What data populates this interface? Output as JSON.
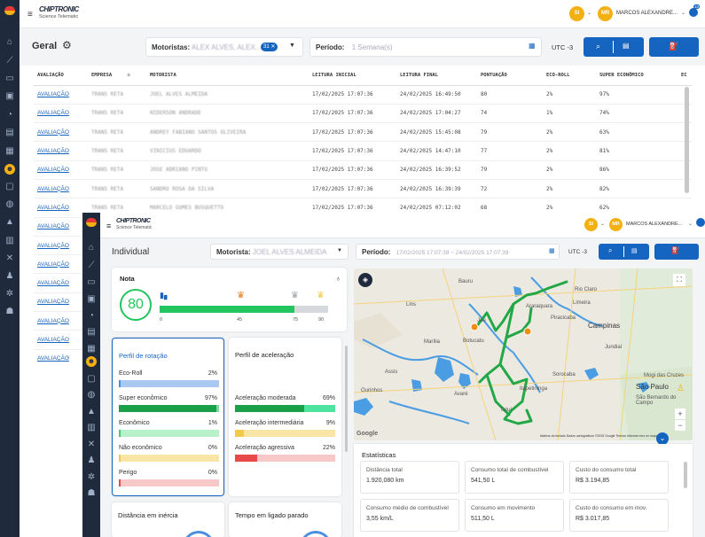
{
  "back": {
    "brand": "CHIPTRONIC",
    "brand_sub": "Science Telematic",
    "avatar1": "SI",
    "avatar2": "MR",
    "user_name": "MARCOS ALEXANDRE...",
    "notif_count": "10",
    "page_title": "Geral",
    "motoristas_label": "Motoristas:",
    "motoristas_value": "ALEX ALVES, ALEX...",
    "motoristas_count": "31",
    "periodo_label": "Período:",
    "periodo_value": "1 Semana(s)",
    "timezone": "UTC -3",
    "columns": [
      "AVALIAÇÃO",
      "EMPRESA",
      "MOTORISTA",
      "LEITURA INICIAL",
      "LEITURA FINAL",
      "PONTUAÇÃO",
      "ECO-ROLL",
      "SUPER ECONÔMICO",
      "EC"
    ],
    "rows": [
      {
        "avaliacao": "AVALIAÇÃO",
        "empresa": "TRANS RETA",
        "motorista": "JOEL ALVES ALMEIDA",
        "inicial": "17/02/2025 17:07:36",
        "final": "24/02/2025 16:49:50",
        "pontuacao": "80",
        "eco": "2%",
        "super": "97%"
      },
      {
        "avaliacao": "AVALIAÇÃO",
        "empresa": "TRANS RETA",
        "motorista": "NIDERSON ANDRADE",
        "inicial": "17/02/2025 17:07:36",
        "final": "24/02/2025 17:04:27",
        "pontuacao": "74",
        "eco": "1%",
        "super": "74%"
      },
      {
        "avaliacao": "AVALIAÇÃO",
        "empresa": "TRANS RETA",
        "motorista": "ANDREY FABIANO SANTOS OLIVEIRA",
        "inicial": "17/02/2025 17:07:36",
        "final": "24/02/2025 15:45:08",
        "pontuacao": "79",
        "eco": "2%",
        "super": "63%"
      },
      {
        "avaliacao": "AVALIAÇÃO",
        "empresa": "TRANS RETA",
        "motorista": "VINICIUS EDUARDO",
        "inicial": "17/02/2025 17:07:36",
        "final": "24/02/2025 14:47:10",
        "pontuacao": "77",
        "eco": "2%",
        "super": "81%"
      },
      {
        "avaliacao": "AVALIAÇÃO",
        "empresa": "TRANS RETA",
        "motorista": "JOSE ADRIANO PINTO",
        "inicial": "17/02/2025 17:07:36",
        "final": "24/02/2025 16:39:52",
        "pontuacao": "79",
        "eco": "2%",
        "super": "86%"
      },
      {
        "avaliacao": "AVALIAÇÃO",
        "empresa": "TRANS RETA",
        "motorista": "SANDRO ROSA DA SILVA",
        "inicial": "17/02/2025 17:07:36",
        "final": "24/02/2025 16:39:39",
        "pontuacao": "72",
        "eco": "2%",
        "super": "82%"
      },
      {
        "avaliacao": "AVALIAÇÃO",
        "empresa": "TRANS RETA",
        "motorista": "MARCELO GOMES BUSQUETTO",
        "inicial": "17/02/2025 17:07:36",
        "final": "24/02/2025 07:12:02",
        "pontuacao": "68",
        "eco": "2%",
        "super": "62%"
      },
      {
        "avaliacao": "AVALIAÇÃO"
      },
      {
        "avaliacao": "AVALIAÇÃO"
      },
      {
        "avaliacao": "AVALIAÇÃO"
      },
      {
        "avaliacao": "AVALIAÇÃO"
      },
      {
        "avaliacao": "AVALIAÇÃO"
      },
      {
        "avaliacao": "AVALIAÇÃO"
      },
      {
        "avaliacao": "AVALIAÇÃO"
      },
      {
        "avaliacao": "AVALIAÇÃO"
      }
    ]
  },
  "front": {
    "brand": "CHIPTRONIC",
    "brand_sub": "Science Telematic",
    "avatar1": "SI",
    "avatar2": "MR",
    "user_name": "MARCOS ALEXANDRE...",
    "page_title": "Individual",
    "motorista_label": "Motorista:",
    "motorista_value": "JOEL ALVES ALMEIDA",
    "periodo_label": "Período:",
    "periodo_value": "17/02/2025 17:07:39 ~ 24/02/2025 17:07:39",
    "timezone": "UTC -3",
    "nota": {
      "title": "Nota",
      "score": "80",
      "progress": 0.8,
      "ticks": [
        "0",
        "45",
        "75",
        "90"
      ]
    },
    "perfil_rotacao": {
      "title": "Perfil de rotação",
      "items": [
        {
          "label": "Eco-Roll",
          "value": "2%",
          "fraction": 0.02,
          "fg": "#4a8fe0",
          "bg": "#a9c9f2"
        },
        {
          "label": "Super econômico",
          "value": "97%",
          "fraction": 0.97,
          "fg": "#1aa049",
          "bg": "#7ddc9c"
        },
        {
          "label": "Econômico",
          "value": "1%",
          "fraction": 0.01,
          "fg": "#3ccf74",
          "bg": "#b6f1c9"
        },
        {
          "label": "Não econômico",
          "value": "0%",
          "fraction": 0.0,
          "fg": "#f2c94c",
          "bg": "#f9e6a6"
        },
        {
          "label": "Perigo",
          "value": "0%",
          "fraction": 0.0,
          "fg": "#e84a4a",
          "bg": "#f8c7c7"
        }
      ]
    },
    "perfil_aceleracao": {
      "title": "Perfil de aceleração",
      "items": [
        {
          "label": "Aceleração moderada",
          "value": "69%",
          "fraction": 0.69,
          "fg": "#1aa049",
          "bg": "#4fe3a0"
        },
        {
          "label": "Aceleração intermediária",
          "value": "9%",
          "fraction": 0.09,
          "fg": "#f2c94c",
          "bg": "#f9e6a6"
        },
        {
          "label": "Aceleração agressiva",
          "value": "22%",
          "fraction": 0.22,
          "fg": "#e84a4a",
          "bg": "#f8c7c7"
        }
      ]
    },
    "distancia_inercia": "Distância em inércia",
    "tempo_ligado": "Tempo em ligado parado",
    "map": {
      "cities": [
        "Bauru",
        "Rio Claro",
        "Limeira",
        "Piracicaba",
        "Campinas",
        "Sorocaba",
        "São Paulo",
        "Mogi das Cruzes",
        "São Bernardo do Campo",
        "Botucatu",
        "Jaú",
        "Lins",
        "Marília",
        "Ourinhos",
        "Assis",
        "Avaré",
        "Itapetininga",
        "Tatuí",
        "Jundiaí",
        "Araraquara"
      ],
      "attribution": "Atalhos do teclado   Dados cartográficos ©2025 Google   Termos   Informar erro no mapa"
    },
    "estatisticas": {
      "title": "Estatísticas",
      "items": [
        {
          "label": "Distância total",
          "value": "1.920,080 km"
        },
        {
          "label": "Consumo total de combustível",
          "value": "541,50 L"
        },
        {
          "label": "Custo do consumo total",
          "value": "R$ 3.194,85"
        },
        {
          "label": "Consumo médio de combustível",
          "value": "3,55 km/L"
        },
        {
          "label": "Consumo em movimento",
          "value": "511,50 L"
        },
        {
          "label": "Custo do consumo em mov.",
          "value": "R$ 3.017,85"
        }
      ]
    },
    "colors": {
      "primary": "#1565c0",
      "sidebar": "#1f2a3c",
      "accent": "#f2b111",
      "score": "#22c55e"
    }
  }
}
